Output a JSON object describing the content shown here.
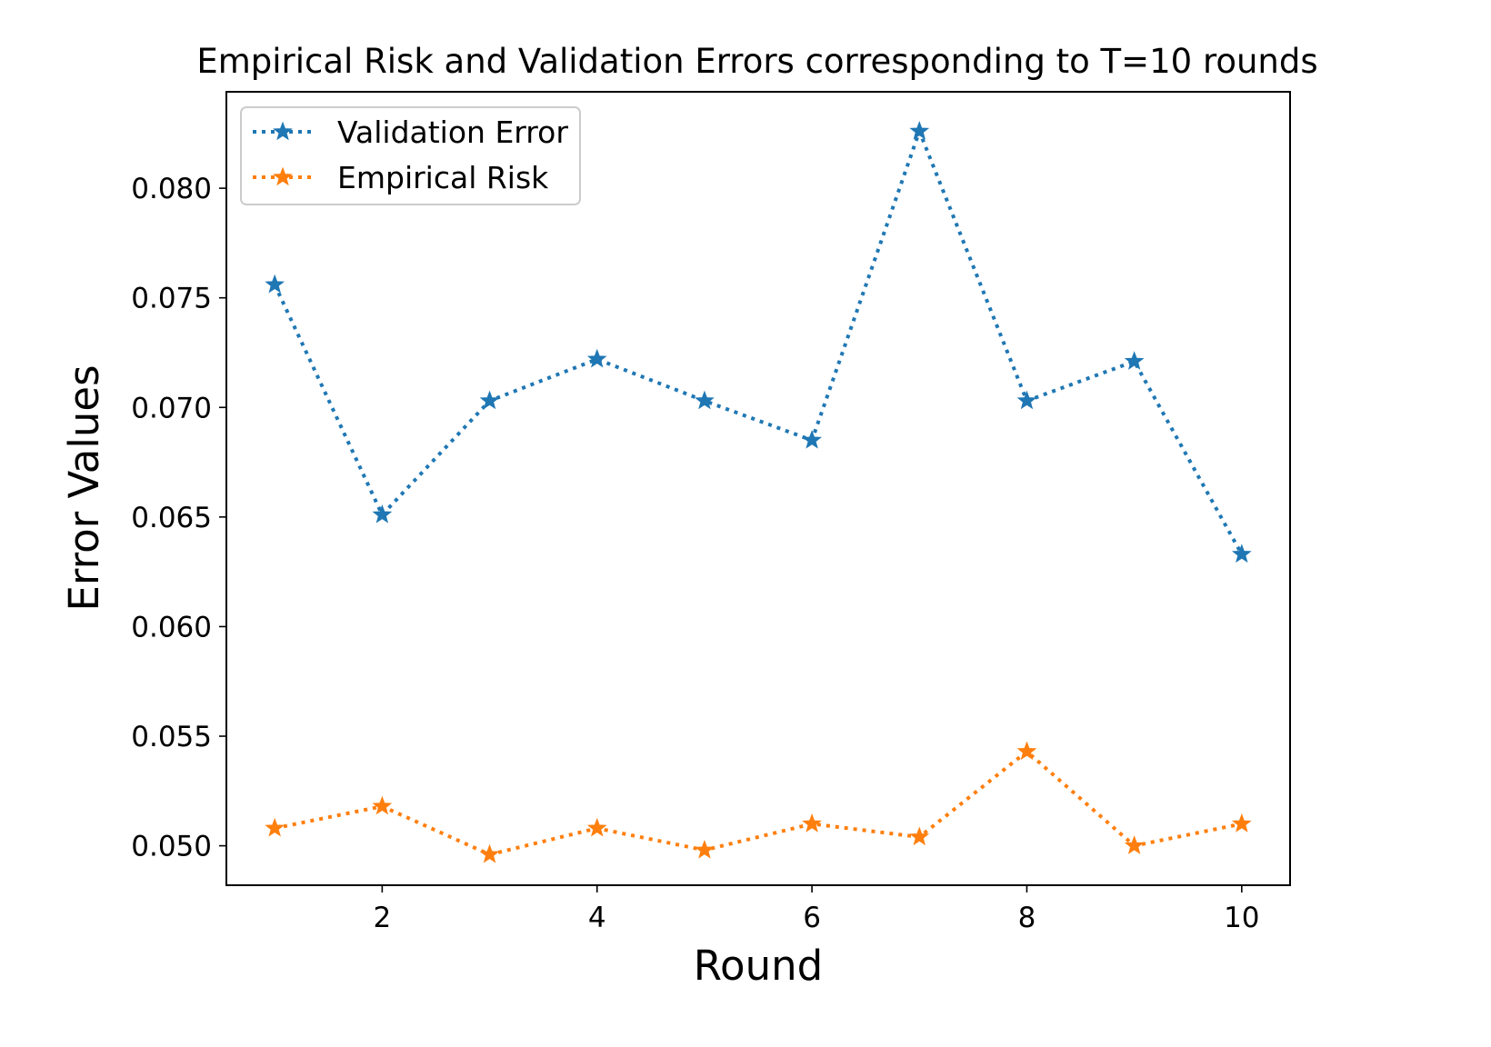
{
  "chart_data": {
    "type": "line",
    "title": "Empirical Risk and Validation Errors corresponding to T=10 rounds",
    "xlabel": "Round",
    "ylabel": "Error Values",
    "x": [
      1,
      2,
      3,
      4,
      5,
      6,
      7,
      8,
      9,
      10
    ],
    "xlim": [
      0.55,
      10.45
    ],
    "ylim": [
      0.0482,
      0.0844
    ],
    "x_ticks": [
      2,
      4,
      6,
      8,
      10
    ],
    "x_tick_labels": [
      "2",
      "4",
      "6",
      "8",
      "10"
    ],
    "y_ticks": [
      0.05,
      0.055,
      0.06,
      0.065,
      0.07,
      0.075,
      0.08
    ],
    "y_tick_labels": [
      "0.050",
      "0.055",
      "0.060",
      "0.065",
      "0.070",
      "0.075",
      "0.080"
    ],
    "grid": false,
    "legend_position": "top-left",
    "series": [
      {
        "name": "Validation Error",
        "color": "#1f77b4",
        "line_style": "dotted",
        "marker": "star",
        "values": [
          0.0756,
          0.0651,
          0.0703,
          0.0722,
          0.0703,
          0.0685,
          0.0826,
          0.0703,
          0.0721,
          0.0633
        ]
      },
      {
        "name": "Empirical Risk",
        "color": "#ff7f0e",
        "line_style": "dotted",
        "marker": "star",
        "values": [
          0.0508,
          0.0518,
          0.0496,
          0.0508,
          0.0498,
          0.051,
          0.0504,
          0.0543,
          0.05,
          0.051
        ]
      }
    ]
  }
}
